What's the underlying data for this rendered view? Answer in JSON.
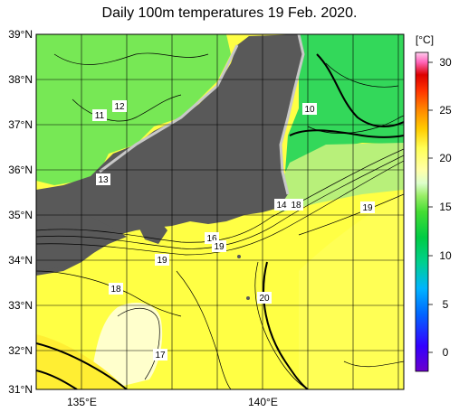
{
  "title": "Daily 100m temperatures 19 Feb. 2020.",
  "colorbar": {
    "unit": "[°C]",
    "ticks": [
      "30",
      "25",
      "20",
      "15",
      "10",
      "5",
      "0"
    ],
    "colors": [
      "#6b00cc",
      "#3300ff",
      "#0066ff",
      "#00b4ff",
      "#00e0c0",
      "#00cc60",
      "#33cc33",
      "#66dd44",
      "#99ee66",
      "#ccff99",
      "#ffffcc",
      "#ffff99",
      "#ffee55",
      "#ffcc00",
      "#ff9900",
      "#ff6600",
      "#ff3300",
      "#dd0000",
      "#ff66aa",
      "#ff99cc",
      "#ffccee"
    ]
  },
  "axes": {
    "lat_labels": [
      "39°N",
      "38°N",
      "37°N",
      "36°N",
      "35°N",
      "34°N",
      "33°N",
      "32°N",
      "31°N"
    ],
    "lon_labels": [
      "135°E",
      "140°E"
    ]
  },
  "contour_labels": [
    "12",
    "11",
    "13",
    "10",
    "14",
    "18",
    "19",
    "16",
    "19",
    "19",
    "18",
    "20",
    "17"
  ],
  "map_colors": {
    "land": "#595959",
    "coast": "#c8c8c8",
    "cold_water": "#44dd44",
    "cool_water": "#88ee55",
    "warm_water": "#ffff33",
    "warmest_water": "#ffffcc"
  }
}
